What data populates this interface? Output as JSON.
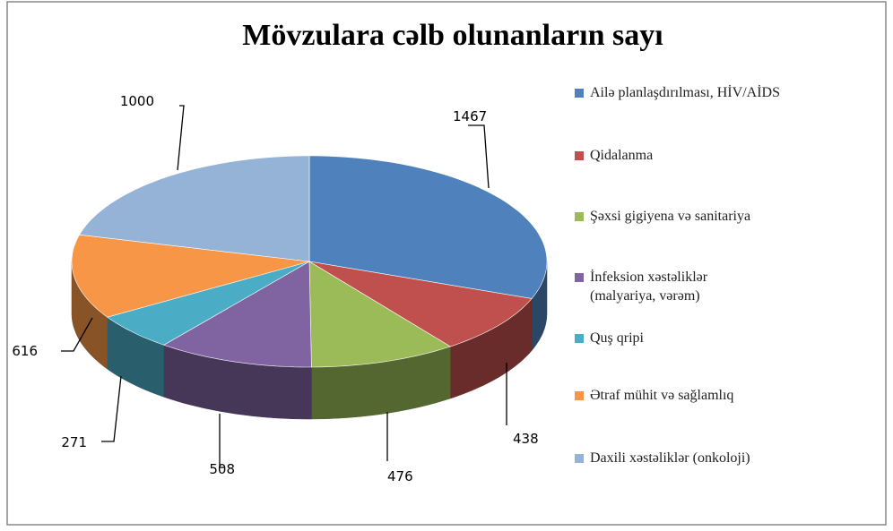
{
  "chart_data": {
    "type": "pie",
    "title": "Mövzulara cəlb olunanların sayı",
    "categories": [
      "Ailə planlaşdırılması, HİV/AİDS",
      "Qidalanma",
      "Şəxsi gigiyena və sanitariya",
      "İnfeksion xəstəliklər (malyariya, vərəm)",
      "Quş qripi",
      "Ətraf mühit və sağlamlıq",
      "Daxili xəstəliklər (onkoloji)"
    ],
    "values": [
      1467,
      438,
      476,
      508,
      271,
      616,
      1000
    ],
    "colors": [
      "#4f81bd",
      "#c0504d",
      "#9bbb59",
      "#8064a2",
      "#4bacc6",
      "#f79646",
      "#95b3d7"
    ],
    "legend": "right"
  }
}
